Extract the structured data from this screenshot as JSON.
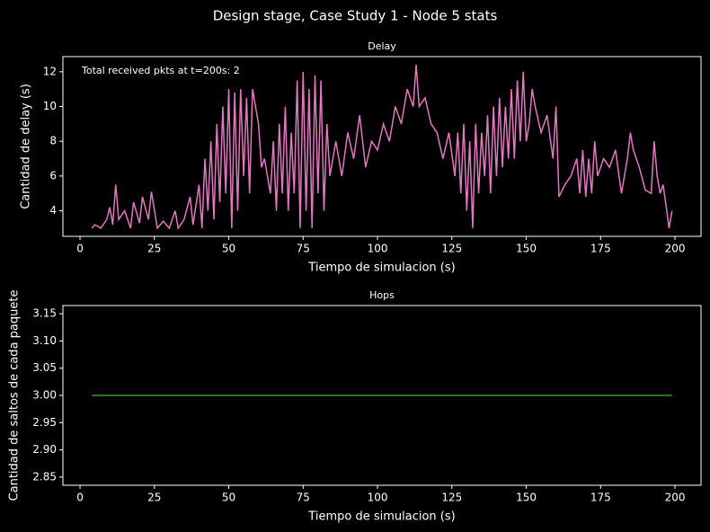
{
  "title": "Design stage, Case Study 1 - Node 5 stats",
  "chart_data": [
    {
      "type": "line",
      "title": "Delay",
      "xlabel": "Tiempo de simulacion (s)",
      "ylabel": "Cantidad de delay (s)",
      "annotation": "Total received pkts at t=200s: 2",
      "x": [
        4,
        5,
        7,
        9,
        10,
        11,
        12,
        13,
        15,
        17,
        18,
        20,
        21,
        23,
        24,
        26,
        28,
        30,
        32,
        33,
        35,
        37,
        38,
        40,
        41,
        42,
        43,
        44,
        45,
        46,
        47,
        48,
        49,
        50,
        51,
        52,
        53,
        54,
        55,
        56,
        57,
        58,
        60,
        61,
        62,
        64,
        65,
        66,
        67,
        68,
        69,
        70,
        71,
        72,
        73,
        74,
        75,
        76,
        77,
        78,
        79,
        80,
        81,
        82,
        83,
        84,
        86,
        88,
        90,
        92,
        94,
        96,
        98,
        100,
        102,
        104,
        106,
        108,
        110,
        112,
        113,
        114,
        116,
        118,
        120,
        122,
        124,
        126,
        127,
        128,
        129,
        130,
        131,
        132,
        133,
        134,
        135,
        136,
        137,
        138,
        139,
        140,
        141,
        142,
        143,
        144,
        145,
        146,
        147,
        148,
        149,
        150,
        151,
        152,
        153,
        155,
        157,
        159,
        160,
        161,
        163,
        165,
        167,
        168,
        169,
        170,
        171,
        172,
        173,
        174,
        176,
        178,
        180,
        182,
        184,
        185,
        186,
        188,
        190,
        192,
        193,
        194,
        195,
        196,
        197,
        198,
        199
      ],
      "series": [
        {
          "color": "#e377c2",
          "values": [
            3,
            3.2,
            3,
            3.5,
            4.2,
            3.2,
            5.5,
            3.5,
            4,
            3,
            4.5,
            3.3,
            4.8,
            3.5,
            5.1,
            3,
            3.4,
            3,
            4,
            3,
            3.5,
            4.8,
            3.2,
            5.5,
            3,
            7,
            4,
            8,
            3.5,
            9,
            4.5,
            10,
            5,
            11,
            3,
            10.8,
            4,
            11,
            6,
            10.5,
            5,
            11,
            9,
            6.5,
            7,
            5,
            8,
            4,
            9,
            5,
            10,
            4,
            8.5,
            5,
            11.5,
            3,
            12,
            4,
            11,
            3,
            11.8,
            5,
            11.5,
            4,
            9,
            6,
            8,
            6,
            8.5,
            7,
            9.5,
            6.5,
            8,
            7.5,
            9,
            8,
            10,
            9,
            11,
            10,
            12.4,
            10,
            10.5,
            9,
            8.5,
            7,
            8.5,
            6,
            8.5,
            5,
            9,
            4,
            8,
            3,
            9,
            5,
            8.5,
            6,
            9.5,
            5,
            10,
            6,
            10.5,
            6.5,
            10,
            7,
            11,
            7,
            11.5,
            8,
            12,
            8,
            9,
            11,
            10,
            8.5,
            9.5,
            7,
            10,
            4.8,
            5.5,
            6,
            7,
            5,
            7.5,
            4.8,
            7,
            5,
            8,
            6,
            7,
            6.5,
            7.5,
            5,
            7,
            8.5,
            7.5,
            6.5,
            5.2,
            5,
            8,
            6,
            5,
            5.5,
            4.3,
            3,
            4
          ]
        }
      ],
      "xlim": [
        -5.75,
        208.75
      ],
      "xticks": [
        0,
        25,
        50,
        75,
        100,
        125,
        150,
        175,
        200
      ],
      "ylim": [
        2.53,
        12.87
      ],
      "yticks": [
        4,
        6,
        8,
        10,
        12
      ]
    },
    {
      "type": "line",
      "title": "Hops",
      "xlabel": "Tiempo de simulacion (s)",
      "ylabel": "Cantidad de saltos de cada paquete",
      "x": [
        4,
        199
      ],
      "series": [
        {
          "color": "#2ca02c",
          "values": [
            3,
            3
          ]
        }
      ],
      "xlim": [
        -5.75,
        208.75
      ],
      "xticks": [
        0,
        25,
        50,
        75,
        100,
        125,
        150,
        175,
        200
      ],
      "ylim": [
        2.835,
        3.165
      ],
      "yticks": [
        2.85,
        {
          "value": 2.9,
          "label": "2.90"
        },
        2.95,
        {
          "value": 3,
          "label": "3.00"
        },
        3.05,
        {
          "value": 3.1,
          "label": "3.10"
        },
        3.15
      ]
    }
  ]
}
